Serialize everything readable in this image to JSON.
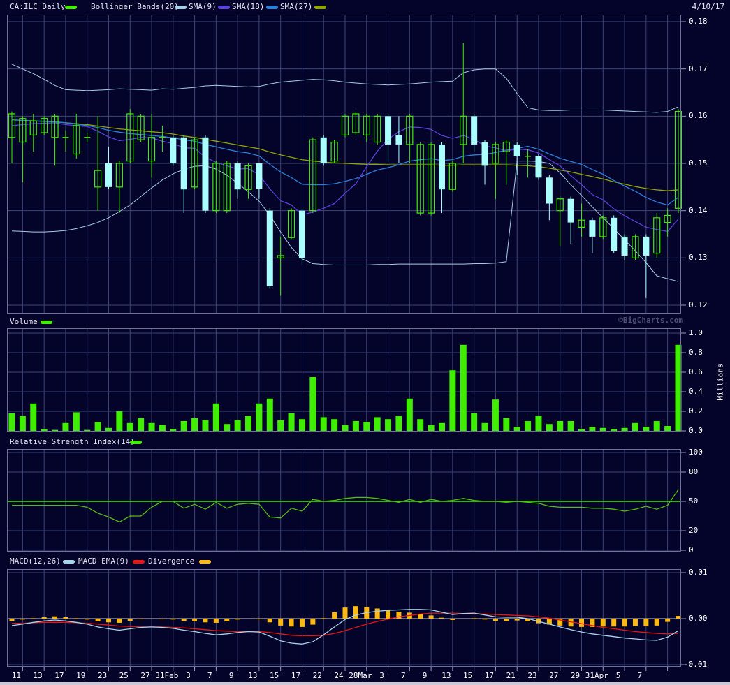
{
  "header": {
    "title": "CA:ILC Daily",
    "date": "4/10/17",
    "legend": {
      "bollinger": "Bollinger Bands(20)",
      "sma9": "SMA(9)",
      "sma18": "SMA(18)",
      "sma27": "SMA(27)"
    }
  },
  "sections": {
    "volume_label": "Volume",
    "rsi_label": "Relative Strength Index(14)",
    "macd_label": "MACD(12,26)",
    "macd_ema_label": "MACD EMA(9)",
    "divergence_label": "Divergence"
  },
  "watermark": "©BigCharts.com",
  "colors": {
    "bg": "#04042a",
    "grid": "#3d4476",
    "border": "#70709c",
    "axis_line": "#9898c0",
    "up": "#3fee00",
    "down": "#aaffff",
    "volume": "#3fee00",
    "bollinger": "#a6cce8",
    "sma9": "#5a3fd8",
    "sma18": "#2a7fd8",
    "sma27": "#8fa500",
    "rsi_line": "#55bb11",
    "rsi_ref": "#3cf00c",
    "macd_line": "#a8d4e8",
    "macd_ema": "#e81414",
    "divergence": "#fdb913",
    "zero_line": "#c8c8d8"
  },
  "axes": {
    "price": {
      "labels": [
        "0.18",
        "0.17",
        "0.16",
        "0.15",
        "0.14",
        "0.13",
        "0.12"
      ],
      "values": [
        0.18,
        0.17,
        0.16,
        0.15,
        0.14,
        0.13,
        0.12
      ]
    },
    "volume": {
      "labels": [
        "1.0",
        "0.8",
        "0.6",
        "0.4",
        "0.2",
        "0.0"
      ],
      "values": [
        1,
        0.8,
        0.6,
        0.4,
        0.2,
        0
      ],
      "unit": "Millions"
    },
    "rsi": {
      "labels": [
        "100",
        "80",
        "50",
        "20",
        "0"
      ],
      "values": [
        100,
        80,
        50,
        20,
        0
      ]
    },
    "macd": {
      "labels": [
        "0.01",
        "0.00",
        "-0.01"
      ],
      "values": [
        0.01,
        0,
        -0.01
      ]
    }
  },
  "chart_data": {
    "type": "candlestick",
    "title": "CA:ILC Daily",
    "as_of_date": "4/10/17",
    "panels": [
      "price with Bollinger Bands(20), SMA(9), SMA(18), SMA(27)",
      "volume (millions)",
      "RSI(14)",
      "MACD(12,26) with EMA(9) and divergence histogram"
    ],
    "ylims": {
      "price": [
        0.12,
        0.18
      ],
      "volume": [
        0,
        1.0
      ],
      "rsi": [
        0,
        100
      ],
      "macd": [
        -0.01,
        0.01
      ]
    },
    "x_labels": [
      "11",
      "13",
      "17",
      "19",
      "23",
      "25",
      "27",
      "31Feb",
      "3",
      "7",
      "9",
      "13",
      "15",
      "17",
      "22",
      "24",
      "28Mar",
      "3",
      "7",
      "9",
      "13",
      "15",
      "17",
      "21",
      "23",
      "27",
      "29",
      "31Apr",
      "5",
      "7"
    ],
    "label_every_n_bars": 2,
    "ohlc": [
      [
        0.1555,
        0.161,
        0.15,
        0.1605
      ],
      [
        0.1545,
        0.16,
        0.146,
        0.1595
      ],
      [
        0.156,
        0.1605,
        0.1525,
        0.159
      ],
      [
        0.1565,
        0.16,
        0.156,
        0.1595
      ],
      [
        0.1555,
        0.1605,
        0.1495,
        0.16
      ],
      [
        0.1555,
        0.157,
        0.1525,
        0.1555
      ],
      [
        0.152,
        0.1605,
        0.151,
        0.158
      ],
      [
        0.1555,
        0.1565,
        0.1545,
        0.1555
      ],
      [
        0.145,
        0.16,
        0.14,
        0.1485
      ],
      [
        0.15,
        0.1535,
        0.1445,
        0.145
      ],
      [
        0.145,
        0.1505,
        0.1395,
        0.15
      ],
      [
        0.1505,
        0.1615,
        0.15,
        0.1605
      ],
      [
        0.155,
        0.1605,
        0.1545,
        0.16
      ],
      [
        0.1505,
        0.1605,
        0.147,
        0.1555
      ],
      [
        0.1555,
        0.158,
        0.1525,
        0.1555
      ],
      [
        0.1555,
        0.156,
        0.1495,
        0.15
      ],
      [
        0.1555,
        0.156,
        0.1395,
        0.1445
      ],
      [
        0.145,
        0.1555,
        0.1445,
        0.155
      ],
      [
        0.1555,
        0.156,
        0.1395,
        0.14
      ],
      [
        0.14,
        0.1505,
        0.1395,
        0.15
      ],
      [
        0.14,
        0.1505,
        0.1395,
        0.15
      ],
      [
        0.15,
        0.1505,
        0.1425,
        0.1445
      ],
      [
        0.1445,
        0.15,
        0.1425,
        0.1495
      ],
      [
        0.15,
        0.15,
        0.1425,
        0.1446
      ],
      [
        0.14,
        0.1405,
        0.1235,
        0.124
      ],
      [
        0.13,
        0.1345,
        0.122,
        0.1305
      ],
      [
        0.1343,
        0.1405,
        0.134,
        0.14
      ],
      [
        0.14,
        0.1405,
        0.1285,
        0.13
      ],
      [
        0.14,
        0.1555,
        0.1395,
        0.155
      ],
      [
        0.1555,
        0.156,
        0.1495,
        0.15
      ],
      [
        0.1505,
        0.155,
        0.15,
        0.1545
      ],
      [
        0.156,
        0.1605,
        0.1555,
        0.16
      ],
      [
        0.1565,
        0.161,
        0.156,
        0.1605
      ],
      [
        0.156,
        0.1605,
        0.1545,
        0.16
      ],
      [
        0.1545,
        0.1605,
        0.154,
        0.16
      ],
      [
        0.16,
        0.1605,
        0.15,
        0.154
      ],
      [
        0.156,
        0.16,
        0.15,
        0.154
      ],
      [
        0.154,
        0.1605,
        0.15,
        0.16
      ],
      [
        0.1395,
        0.1545,
        0.139,
        0.154
      ],
      [
        0.1395,
        0.1545,
        0.139,
        0.154
      ],
      [
        0.154,
        0.1545,
        0.1395,
        0.1445
      ],
      [
        0.1445,
        0.1505,
        0.144,
        0.15
      ],
      [
        0.154,
        0.1755,
        0.15,
        0.16
      ],
      [
        0.16,
        0.1605,
        0.1525,
        0.154
      ],
      [
        0.1545,
        0.155,
        0.1455,
        0.1495
      ],
      [
        0.15,
        0.1545,
        0.1425,
        0.154
      ],
      [
        0.1525,
        0.155,
        0.1455,
        0.1545
      ],
      [
        0.154,
        0.1545,
        0.1475,
        0.1515
      ],
      [
        0.1515,
        0.153,
        0.147,
        0.1515
      ],
      [
        0.1515,
        0.152,
        0.1465,
        0.147
      ],
      [
        0.147,
        0.1475,
        0.138,
        0.1415
      ],
      [
        0.14,
        0.143,
        0.1325,
        0.1425
      ],
      [
        0.1425,
        0.143,
        0.133,
        0.1375
      ],
      [
        0.1365,
        0.1415,
        0.1345,
        0.138
      ],
      [
        0.138,
        0.1385,
        0.131,
        0.1345
      ],
      [
        0.1345,
        0.139,
        0.134,
        0.1385
      ],
      [
        0.1385,
        0.139,
        0.131,
        0.1315
      ],
      [
        0.1345,
        0.135,
        0.1295,
        0.1305
      ],
      [
        0.13,
        0.135,
        0.1295,
        0.1345
      ],
      [
        0.1345,
        0.135,
        0.1215,
        0.1305
      ],
      [
        0.131,
        0.1395,
        0.13,
        0.1385
      ],
      [
        0.1375,
        0.1405,
        0.1345,
        0.139
      ],
      [
        0.1405,
        0.1615,
        0.1395,
        0.161
      ]
    ],
    "volume_millions": [
      0.18,
      0.15,
      0.28,
      0.02,
      0.01,
      0.08,
      0.19,
      0.01,
      0.09,
      0.03,
      0.2,
      0.08,
      0.13,
      0.08,
      0.06,
      0.02,
      0.1,
      0.13,
      0.11,
      0.28,
      0.07,
      0.11,
      0.15,
      0.28,
      0.33,
      0.11,
      0.18,
      0.12,
      0.55,
      0.14,
      0.12,
      0.06,
      0.1,
      0.09,
      0.14,
      0.12,
      0.15,
      0.33,
      0.12,
      0.06,
      0.08,
      0.62,
      0.88,
      0.18,
      0.08,
      0.32,
      0.13,
      0.04,
      0.1,
      0.15,
      0.07,
      0.1,
      0.1,
      0.02,
      0.04,
      0.03,
      0.02,
      0.03,
      0.08,
      0.04,
      0.1,
      0.05,
      0.88
    ],
    "overlays": {
      "bollinger_upper": [
        0.171,
        0.17,
        0.169,
        0.1678,
        0.1665,
        0.1656,
        0.1655,
        0.1654,
        0.1655,
        0.1656,
        0.1658,
        0.1657,
        0.1656,
        0.1655,
        0.1658,
        0.1657,
        0.1659,
        0.1661,
        0.1664,
        0.1665,
        0.1664,
        0.1663,
        0.1662,
        0.1663,
        0.1668,
        0.1672,
        0.1674,
        0.1676,
        0.1678,
        0.1677,
        0.1675,
        0.1672,
        0.167,
        0.1668,
        0.1667,
        0.1666,
        0.1667,
        0.1668,
        0.167,
        0.1672,
        0.1673,
        0.1674,
        0.1692,
        0.1698,
        0.17,
        0.17,
        0.168,
        0.1648,
        0.1618,
        0.1613,
        0.1612,
        0.1612,
        0.1613,
        0.1613,
        0.1613,
        0.1613,
        0.1612,
        0.1611,
        0.161,
        0.1609,
        0.1608,
        0.161,
        0.162
      ],
      "bollinger_lower": [
        0.1357,
        0.1356,
        0.1355,
        0.1355,
        0.1356,
        0.1358,
        0.1362,
        0.1368,
        0.1375,
        0.1385,
        0.1398,
        0.1412,
        0.143,
        0.1448,
        0.1465,
        0.1478,
        0.1488,
        0.1494,
        0.1495,
        0.1488,
        0.1475,
        0.1458,
        0.144,
        0.142,
        0.139,
        0.1355,
        0.1322,
        0.1298,
        0.1288,
        0.1286,
        0.1285,
        0.1285,
        0.1285,
        0.1285,
        0.1286,
        0.1286,
        0.1287,
        0.1287,
        0.1287,
        0.1287,
        0.1287,
        0.1287,
        0.1287,
        0.1288,
        0.1288,
        0.1289,
        0.1292,
        0.1505,
        0.1505,
        0.1504,
        0.15,
        0.148,
        0.1455,
        0.1432,
        0.1408,
        0.1385,
        0.1362,
        0.1338,
        0.1315,
        0.129,
        0.1262,
        0.1256,
        0.125
      ],
      "sma9": [
        0.158,
        0.1582,
        0.1584,
        0.1585,
        0.1586,
        0.1582,
        0.158,
        0.1578,
        0.1568,
        0.1556,
        0.1548,
        0.1551,
        0.1555,
        0.1554,
        0.1547,
        0.1542,
        0.1533,
        0.1532,
        0.1513,
        0.1502,
        0.1495,
        0.1488,
        0.1489,
        0.1476,
        0.1446,
        0.1421,
        0.1412,
        0.1391,
        0.1397,
        0.1405,
        0.1415,
        0.1437,
        0.1457,
        0.1493,
        0.1526,
        0.1551,
        0.1567,
        0.1577,
        0.1576,
        0.1572,
        0.1559,
        0.1553,
        0.1559,
        0.1551,
        0.1537,
        0.1533,
        0.1527,
        0.153,
        0.1529,
        0.1522,
        0.1508,
        0.1495,
        0.1474,
        0.1455,
        0.1434,
        0.1423,
        0.1404,
        0.1389,
        0.1377,
        0.1365,
        0.136,
        0.1356,
        0.1382
      ],
      "sma18": [
        0.1592,
        0.1591,
        0.159,
        0.1589,
        0.1588,
        0.1586,
        0.1583,
        0.158,
        0.1576,
        0.157,
        0.1566,
        0.1563,
        0.1561,
        0.1559,
        0.1557,
        0.1554,
        0.155,
        0.1547,
        0.154,
        0.1535,
        0.153,
        0.1525,
        0.1522,
        0.1516,
        0.1498,
        0.1482,
        0.147,
        0.1456,
        0.1455,
        0.1455,
        0.1457,
        0.1462,
        0.1468,
        0.1477,
        0.1486,
        0.1491,
        0.1497,
        0.1505,
        0.1508,
        0.151,
        0.1506,
        0.1508,
        0.1515,
        0.1518,
        0.1519,
        0.1523,
        0.1528,
        0.1532,
        0.1536,
        0.153,
        0.152,
        0.1511,
        0.1504,
        0.1498,
        0.1487,
        0.1477,
        0.1464,
        0.1452,
        0.1441,
        0.1428,
        0.1418,
        0.1412,
        0.1428
      ],
      "sma27": [
        0.1592,
        0.1591,
        0.159,
        0.1589,
        0.1588,
        0.1586,
        0.1584,
        0.1582,
        0.1579,
        0.1576,
        0.1573,
        0.1571,
        0.1569,
        0.1567,
        0.1565,
        0.1562,
        0.1558,
        0.1555,
        0.1551,
        0.1547,
        0.1543,
        0.1539,
        0.1535,
        0.1531,
        0.1524,
        0.1518,
        0.1513,
        0.1508,
        0.1505,
        0.1503,
        0.1501,
        0.15,
        0.1499,
        0.1498,
        0.1498,
        0.1497,
        0.1497,
        0.1497,
        0.1497,
        0.1497,
        0.1496,
        0.1496,
        0.1497,
        0.1497,
        0.1497,
        0.1497,
        0.1497,
        0.1496,
        0.1495,
        0.1493,
        0.149,
        0.1486,
        0.1482,
        0.1477,
        0.1472,
        0.1467,
        0.1461,
        0.1456,
        0.1451,
        0.1447,
        0.1444,
        0.1442,
        0.1444
      ]
    },
    "rsi14": [
      46,
      46,
      46,
      46,
      46,
      46,
      46,
      44,
      38,
      34,
      29,
      35,
      35,
      44,
      50,
      50,
      43,
      47,
      42,
      49,
      43,
      47,
      48,
      47,
      34,
      33,
      43,
      40,
      52,
      50,
      51,
      53,
      54,
      54,
      53,
      51,
      49,
      52,
      49,
      52,
      50,
      51,
      53,
      51,
      50,
      50,
      49,
      50,
      49,
      48,
      45,
      44,
      44,
      44,
      43,
      43,
      42,
      40,
      42,
      45,
      42,
      46,
      62
    ],
    "macd": {
      "macd_12_26": [
        -0.0015,
        -0.0012,
        -0.0008,
        -0.0005,
        -0.0003,
        -0.0005,
        -0.0008,
        -0.0012,
        -0.0018,
        -0.0022,
        -0.0025,
        -0.0022,
        -0.0019,
        -0.0018,
        -0.0019,
        -0.0021,
        -0.0025,
        -0.0028,
        -0.0032,
        -0.0035,
        -0.0033,
        -0.003,
        -0.0028,
        -0.0029,
        -0.0038,
        -0.0048,
        -0.0053,
        -0.0055,
        -0.005,
        -0.0035,
        -0.0018,
        -0.0002,
        0.0008,
        0.0013,
        0.0016,
        0.0018,
        0.0019,
        0.002,
        0.002,
        0.0019,
        0.0014,
        0.0009,
        0.0011,
        0.0012,
        0.0008,
        0.0004,
        0.0003,
        0.0003,
        0.0,
        -0.0006,
        -0.0012,
        -0.0018,
        -0.0024,
        -0.0029,
        -0.0033,
        -0.0036,
        -0.0039,
        -0.0042,
        -0.0044,
        -0.0046,
        -0.0047,
        -0.004,
        -0.0026
      ],
      "ema9": [
        -0.001,
        -0.001,
        -0.0009,
        -0.0008,
        -0.0008,
        -0.0008,
        -0.0009,
        -0.001,
        -0.0012,
        -0.0014,
        -0.0016,
        -0.0017,
        -0.0018,
        -0.0018,
        -0.0018,
        -0.0019,
        -0.002,
        -0.0022,
        -0.0024,
        -0.0026,
        -0.0027,
        -0.0028,
        -0.0028,
        -0.0028,
        -0.003,
        -0.0033,
        -0.0036,
        -0.0037,
        -0.0037,
        -0.0036,
        -0.0032,
        -0.0026,
        -0.0019,
        -0.0012,
        -0.0006,
        -0.0001,
        0.0004,
        0.0007,
        0.001,
        0.0012,
        0.0012,
        0.0012,
        0.0011,
        0.0011,
        0.001,
        0.0009,
        0.0008,
        0.0007,
        0.0006,
        0.0004,
        0.0001,
        -0.0003,
        -0.0007,
        -0.0011,
        -0.0015,
        -0.0019,
        -0.0022,
        -0.0025,
        -0.0028,
        -0.003,
        -0.0032,
        -0.0033,
        -0.0032
      ],
      "divergence": [
        -0.0005,
        -0.0002,
        0.0001,
        0.0003,
        0.0005,
        0.0003,
        0.0001,
        -0.0002,
        -0.0006,
        -0.0008,
        -0.0009,
        -0.0005,
        -0.0001,
        0.0,
        -0.0001,
        -0.0002,
        -0.0005,
        -0.0006,
        -0.0008,
        -0.0009,
        -0.0006,
        -0.0002,
        0.0,
        -0.0001,
        -0.0008,
        -0.0015,
        -0.0017,
        -0.0018,
        -0.0013,
        0.0001,
        0.0014,
        0.0024,
        0.0027,
        0.0025,
        0.0022,
        0.0019,
        0.0015,
        0.0013,
        0.001,
        0.0007,
        0.0002,
        -0.0003,
        0.0,
        0.0001,
        -0.0002,
        -0.0005,
        -0.0005,
        -0.0004,
        -0.0006,
        -0.001,
        -0.0013,
        -0.0015,
        -0.0017,
        -0.0018,
        -0.0018,
        -0.0017,
        -0.0017,
        -0.0017,
        -0.0016,
        -0.0016,
        -0.0015,
        -0.0007,
        0.0006
      ]
    }
  }
}
